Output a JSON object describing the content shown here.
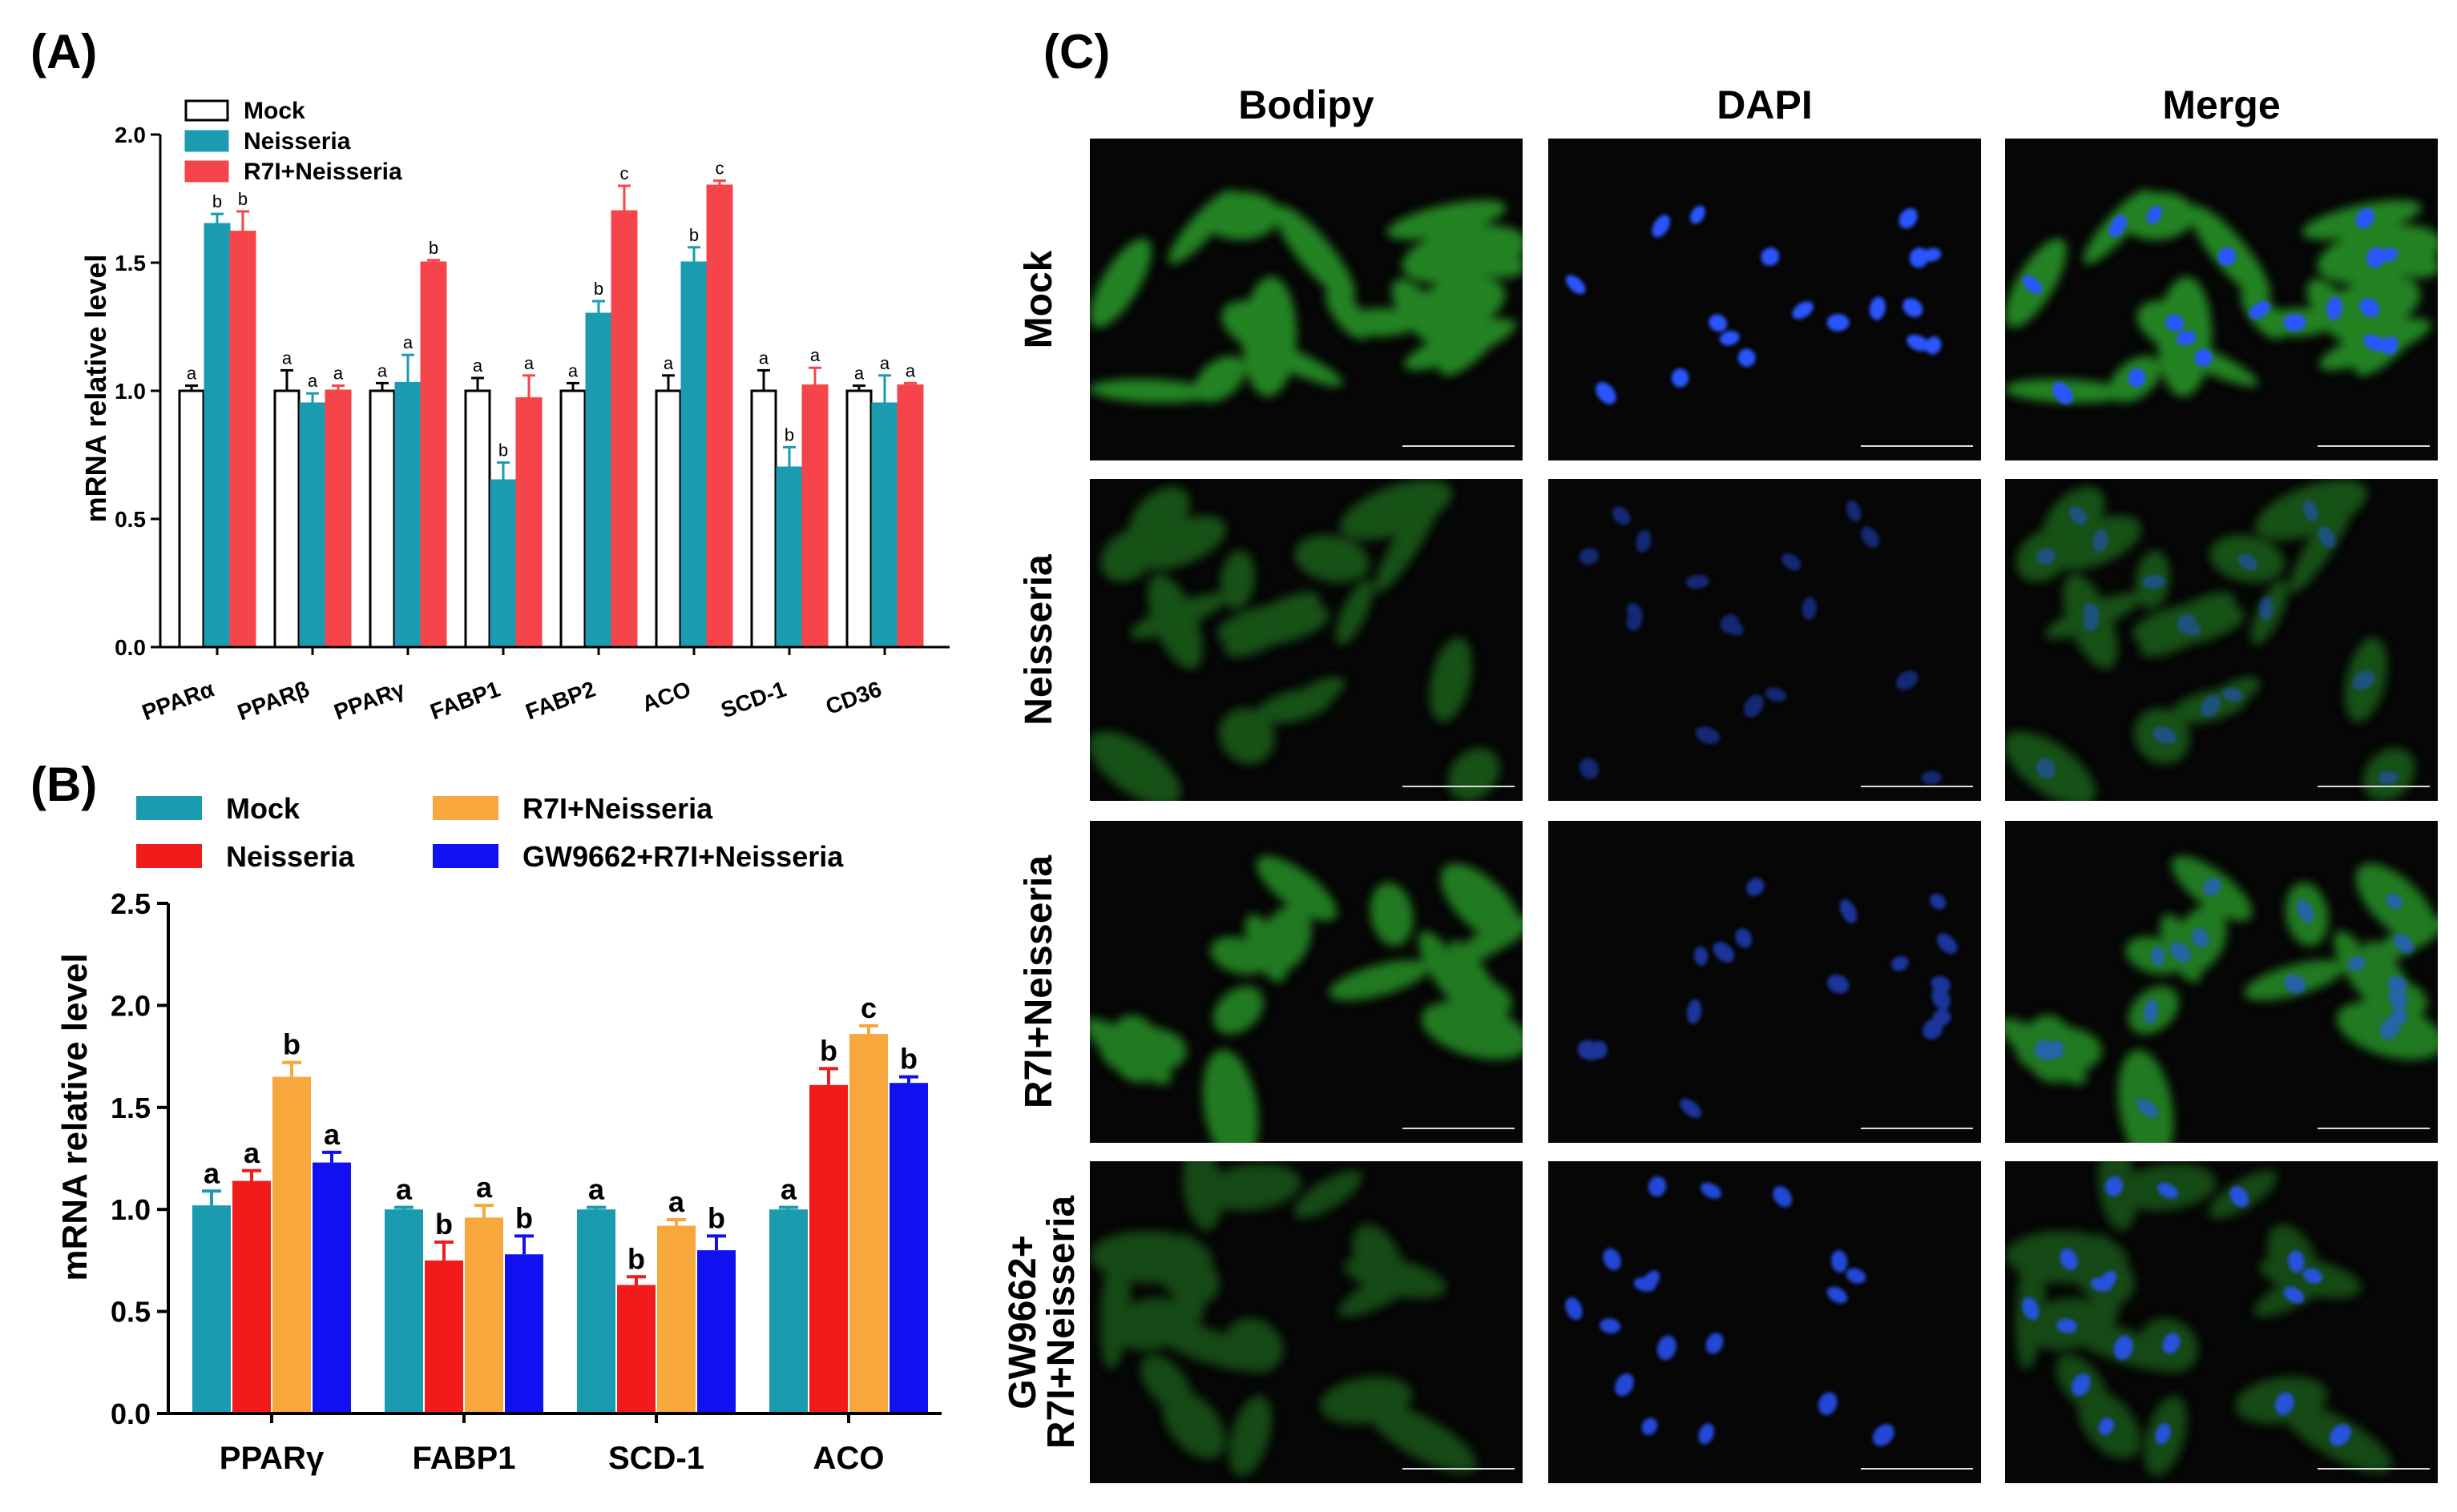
{
  "panels": {
    "A": {
      "label": "(A)"
    },
    "B": {
      "label": "(B)"
    },
    "C": {
      "label": "(C)"
    }
  },
  "chart_data": [
    {
      "panel": "A",
      "type": "bar",
      "ylabel": "mRNA relative level",
      "ylim": [
        0,
        2.0
      ],
      "yticks": [
        "0.0",
        "0.5",
        "1.0",
        "1.5",
        "2.0"
      ],
      "categories": [
        "PPARα",
        "PPARβ",
        "PPARγ",
        "FABP1",
        "FABP2",
        "ACO",
        "SCD-1",
        "CD36"
      ],
      "legend": {
        "position": "top-left"
      },
      "series": [
        {
          "name": "Mock",
          "color": "#ffffff",
          "stroke": "#000000",
          "values": [
            1.0,
            1.0,
            1.0,
            1.0,
            1.0,
            1.0,
            1.0,
            1.0
          ],
          "errors": [
            0.02,
            0.08,
            0.03,
            0.05,
            0.03,
            0.06,
            0.08,
            0.02
          ],
          "labels": [
            "a",
            "a",
            "a",
            "a",
            "a",
            "a",
            "a",
            "a"
          ]
        },
        {
          "name": "Neisseria",
          "color": "#1a9bb0",
          "stroke": "#1a9bb0",
          "values": [
            1.65,
            0.95,
            1.03,
            0.65,
            1.3,
            1.5,
            0.7,
            0.95
          ],
          "errors": [
            0.04,
            0.04,
            0.11,
            0.07,
            0.05,
            0.06,
            0.08,
            0.11
          ],
          "labels": [
            "b",
            "a",
            "a",
            "b",
            "b",
            "b",
            "b",
            "a"
          ]
        },
        {
          "name": "R7I+Neisseria",
          "color": "#f5454b",
          "stroke": "#f5454b",
          "values": [
            1.62,
            1.0,
            1.5,
            0.97,
            1.7,
            1.8,
            1.02,
            1.02
          ],
          "errors": [
            0.08,
            0.02,
            0.01,
            0.09,
            0.1,
            0.02,
            0.07,
            0.01
          ],
          "labels": [
            "b",
            "a",
            "b",
            "a",
            "c",
            "c",
            "a",
            "a"
          ]
        }
      ]
    },
    {
      "panel": "B",
      "type": "bar",
      "ylabel": "mRNA relative level",
      "ylim": [
        0,
        2.5
      ],
      "yticks": [
        "0.0",
        "0.5",
        "1.0",
        "1.5",
        "2.0",
        "2.5"
      ],
      "categories": [
        "PPARγ",
        "FABP1",
        "SCD-1",
        "ACO"
      ],
      "legend": {
        "position": "top"
      },
      "series": [
        {
          "name": "Mock",
          "color": "#1a9bb0",
          "values": [
            1.02,
            1.0,
            1.0,
            1.0
          ],
          "errors": [
            0.07,
            0.01,
            0.01,
            0.01
          ],
          "labels": [
            "a",
            "a",
            "a",
            "a"
          ]
        },
        {
          "name": "Neisseria",
          "color": "#f21b1b",
          "values": [
            1.14,
            0.75,
            0.63,
            1.61
          ],
          "errors": [
            0.05,
            0.09,
            0.04,
            0.08
          ],
          "labels": [
            "a",
            "b",
            "b",
            "b"
          ]
        },
        {
          "name": "R7I+Neisseria",
          "color": "#f7a73c",
          "values": [
            1.65,
            0.96,
            0.92,
            1.86
          ],
          "errors": [
            0.07,
            0.06,
            0.03,
            0.04
          ],
          "labels": [
            "b",
            "a",
            "a",
            "c"
          ]
        },
        {
          "name": "GW9662+R7I+Neisseria",
          "color": "#1010f0",
          "values": [
            1.23,
            0.78,
            0.8,
            1.62
          ],
          "errors": [
            0.05,
            0.09,
            0.07,
            0.03
          ],
          "labels": [
            "a",
            "b",
            "b",
            "b"
          ]
        }
      ]
    }
  ],
  "micrographs": {
    "columns": [
      "Bodipy",
      "DAPI",
      "Merge"
    ],
    "rows": [
      {
        "label": "Mock"
      },
      {
        "label": "Neisseria"
      },
      {
        "label": "R7I+Neisseria"
      },
      {
        "label_line1": "GW9662+",
        "label_line2": "R7I+Neisseria"
      }
    ],
    "colors": {
      "bodipy": "#2fae2f",
      "dapi": "#2a54ff",
      "background": "#050605"
    }
  }
}
